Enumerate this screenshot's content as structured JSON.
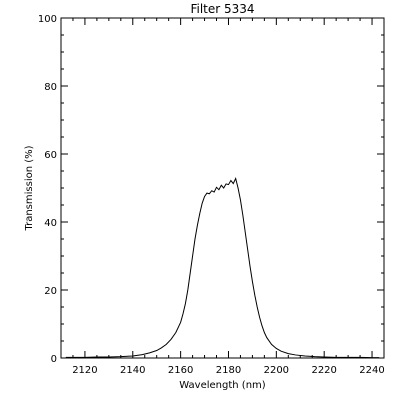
{
  "chart_data": {
    "type": "line",
    "title": "Filter 5334",
    "xlabel": "Wavelength (nm)",
    "ylabel": "Transmission (%)",
    "xlim": [
      2110,
      2245
    ],
    "ylim": [
      0,
      100
    ],
    "xticks": [
      2120,
      2140,
      2160,
      2180,
      2200,
      2220,
      2240
    ],
    "yticks": [
      0,
      20,
      40,
      60,
      80,
      100
    ],
    "grid": false,
    "series": [
      {
        "color": "#000000",
        "x": [
          2112,
          2120,
          2125,
          2130,
          2135,
          2140,
          2144,
          2147,
          2150,
          2152,
          2154,
          2156,
          2158,
          2160,
          2161,
          2162,
          2163,
          2164,
          2165,
          2166,
          2167,
          2168,
          2169,
          2170,
          2171,
          2172,
          2173,
          2174,
          2175,
          2176,
          2177,
          2178,
          2179,
          2180,
          2181,
          2182,
          2183,
          2184,
          2185,
          2186,
          2187,
          2188,
          2189,
          2190,
          2191,
          2192,
          2193,
          2194,
          2195,
          2196,
          2198,
          2200,
          2202,
          2205,
          2208,
          2212,
          2216,
          2220,
          2225,
          2230,
          2235,
          2240,
          2243
        ],
        "y": [
          0.2,
          0.2,
          0.3,
          0.3,
          0.4,
          0.6,
          1.0,
          1.5,
          2.2,
          3.0,
          4.0,
          5.5,
          7.5,
          10.5,
          13,
          16,
          20,
          25,
          30,
          35,
          39,
          42.5,
          45.5,
          47.5,
          48.5,
          48.3,
          49.2,
          48.8,
          50.2,
          49.5,
          50.8,
          50.0,
          51.2,
          51.0,
          52.2,
          51.3,
          52.8,
          50.0,
          46.5,
          42.0,
          37.0,
          32.0,
          27.0,
          22.5,
          18.5,
          15.0,
          12.0,
          9.5,
          7.5,
          6.0,
          4.0,
          2.8,
          2.0,
          1.3,
          0.9,
          0.6,
          0.4,
          0.3,
          0.2,
          0.2,
          0.2,
          0.1,
          0.1
        ]
      }
    ]
  }
}
